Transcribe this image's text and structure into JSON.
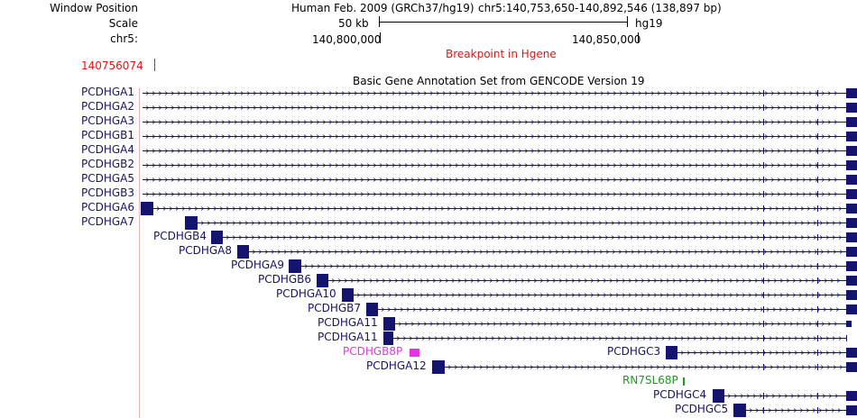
{
  "header": {
    "window_position_label": "Window Position",
    "scale_label": "Scale",
    "chrom_label": "chr5:",
    "assembly": "Human Feb. 2009 (GRCh37/hg19)",
    "position": "chr5:140,753,650-140,892,546 (138,897 bp)",
    "scale_text": "50 kb",
    "db": "hg19",
    "tick1": "140,800,000",
    "tick2": "140,850,000",
    "breakpoint_title": "Breakpoint in Hgene",
    "breakpoint_pos": "140756074",
    "track_title": "Basic Gene Annotation Set from GENCODE Version 19"
  },
  "colors": {
    "gene": "#14146e",
    "pseudogene": "#e632e6",
    "rna": "#1e9b1e",
    "breakpoint": "#e61414",
    "guide": "#f0b4b4"
  },
  "genes": [
    {
      "label": "PCDHGA1"
    },
    {
      "label": "PCDHGA2"
    },
    {
      "label": "PCDHGA3"
    },
    {
      "label": "PCDHGB1"
    },
    {
      "label": "PCDHGA4"
    },
    {
      "label": "PCDHGB2"
    },
    {
      "label": "PCDHGA5"
    },
    {
      "label": "PCDHGB3"
    },
    {
      "label": "PCDHGA6"
    },
    {
      "label": "PCDHGA7"
    },
    {
      "label": "PCDHGB4"
    },
    {
      "label": "PCDHGA8"
    },
    {
      "label": "PCDHGA9"
    },
    {
      "label": "PCDHGB6"
    },
    {
      "label": "PCDHGA10"
    },
    {
      "label": "PCDHGB7"
    },
    {
      "label": "PCDHGA11"
    },
    {
      "label": "PCDHGA11"
    },
    {
      "label": "PCDHGB8P"
    },
    {
      "label": "PCDHGC3"
    },
    {
      "label": "PCDHGA12"
    },
    {
      "label": "RN7SL68P"
    },
    {
      "label": "PCDHGC4"
    },
    {
      "label": "PCDHGC5"
    }
  ]
}
